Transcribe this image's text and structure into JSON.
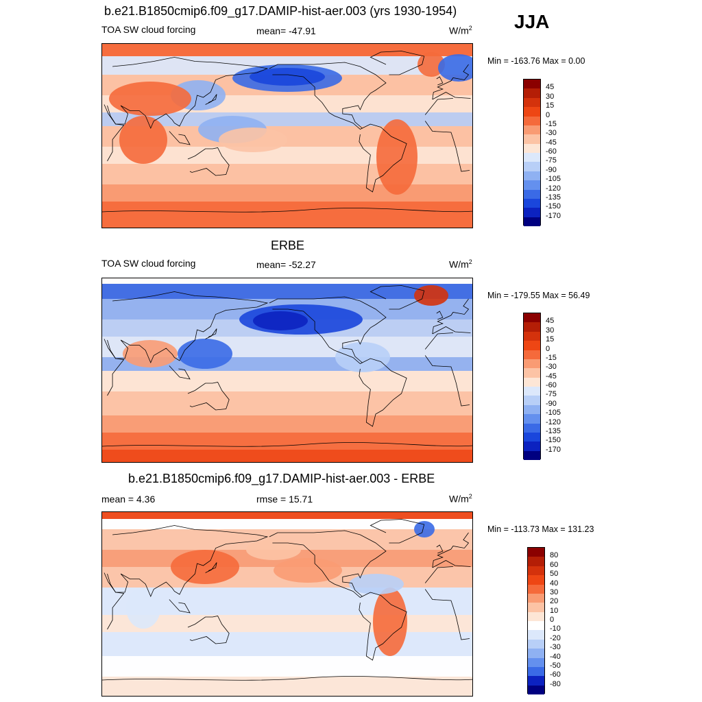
{
  "season": "JJA",
  "panels": [
    {
      "title": "b.e21.B1850cmip6.f09_g17.DAMIP-hist-aer.003 (yrs 1930-1954)",
      "left_label": "TOA SW cloud forcing",
      "center_label": "mean= -47.91",
      "units_base": "W/m",
      "units_exp": "2",
      "minmax": "Min = -163.76 Max =   0.00",
      "levels": [
        "45",
        "30",
        "15",
        "0",
        "-15",
        "-30",
        "-45",
        "-60",
        "-75",
        "-90",
        "-105",
        "-120",
        "-135",
        "-150",
        "-170"
      ],
      "colors": [
        "#8b0000",
        "#b41e06",
        "#d4320c",
        "#ee4614",
        "#f56a3b",
        "#f99b73",
        "#fcc3a5",
        "#fde6d6",
        "#dce8fb",
        "#b8cff7",
        "#8fb1f2",
        "#6490ee",
        "#3a6ae6",
        "#1a46dc",
        "#0c22c0",
        "#000080"
      ],
      "style": "model"
    },
    {
      "title": "ERBE",
      "left_label": "TOA SW cloud forcing",
      "center_label": "mean= -52.27",
      "units_base": "W/m",
      "units_exp": "2",
      "minmax": "Min = -179.55 Max =  56.49",
      "levels": [
        "45",
        "30",
        "15",
        "0",
        "-15",
        "-30",
        "-45",
        "-60",
        "-75",
        "-90",
        "-105",
        "-120",
        "-135",
        "-150",
        "-170"
      ],
      "colors": [
        "#8b0000",
        "#b41e06",
        "#d4320c",
        "#ee4614",
        "#f56a3b",
        "#f99b73",
        "#fcc3a5",
        "#fde6d6",
        "#dce8fb",
        "#b8cff7",
        "#8fb1f2",
        "#6490ee",
        "#3a6ae6",
        "#1a46dc",
        "#0c22c0",
        "#000080"
      ],
      "style": "obs"
    },
    {
      "title": "b.e21.B1850cmip6.f09_g17.DAMIP-hist-aer.003 - ERBE",
      "left_label": "mean =   4.36",
      "center_label": "rmse =  15.71",
      "units_base": "W/m",
      "units_exp": "2",
      "minmax": "Min = -113.73 Max = 131.23",
      "levels": [
        "80",
        "60",
        "50",
        "40",
        "30",
        "20",
        "10",
        "0",
        "-10",
        "-20",
        "-30",
        "-40",
        "-50",
        "-60",
        "-80"
      ],
      "colors": [
        "#8b0000",
        "#b41e06",
        "#d4320c",
        "#ee4614",
        "#f56a3b",
        "#f99b73",
        "#fcc3a5",
        "#fde6d6",
        "#ffffff",
        "#dce8fb",
        "#b8cff7",
        "#8fb1f2",
        "#6490ee",
        "#3a6ae6",
        "#0c22c0",
        "#000080"
      ],
      "style": "diff"
    }
  ],
  "chart_data": [
    {
      "type": "heatmap",
      "title": "b.e21.B1850cmip6.f09_g17.DAMIP-hist-aer.003 (yrs 1930-1954)",
      "variable": "TOA SW cloud forcing",
      "units": "W/m2",
      "mean": -47.91,
      "min": -163.76,
      "max": 0.0,
      "contour_levels": [
        45,
        30,
        15,
        0,
        -15,
        -30,
        -45,
        -60,
        -75,
        -90,
        -105,
        -120,
        -135,
        -150,
        -170
      ],
      "season": "JJA"
    },
    {
      "type": "heatmap",
      "title": "ERBE",
      "variable": "TOA SW cloud forcing",
      "units": "W/m2",
      "mean": -52.27,
      "min": -179.55,
      "max": 56.49,
      "contour_levels": [
        45,
        30,
        15,
        0,
        -15,
        -30,
        -45,
        -60,
        -75,
        -90,
        -105,
        -120,
        -135,
        -150,
        -170
      ]
    },
    {
      "type": "heatmap",
      "title": "b.e21.B1850cmip6.f09_g17.DAMIP-hist-aer.003 - ERBE",
      "units": "W/m2",
      "mean": 4.36,
      "rmse": 15.71,
      "min": -113.73,
      "max": 131.23,
      "contour_levels": [
        80,
        60,
        50,
        40,
        30,
        20,
        10,
        0,
        -10,
        -20,
        -30,
        -40,
        -50,
        -60,
        -80
      ]
    }
  ]
}
